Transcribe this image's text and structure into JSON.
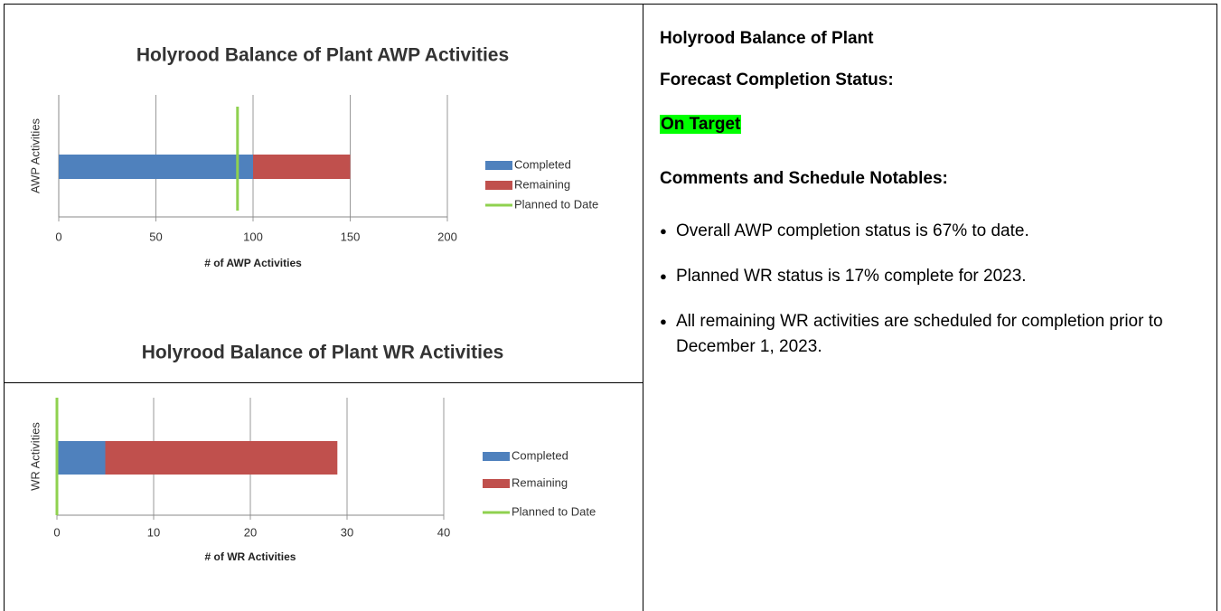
{
  "chart_data": [
    {
      "type": "stacked_hbar",
      "title": "Holyrood Balance of Plant AWP Activities",
      "ylabel": "AWP Activities",
      "xlabel": "# of AWP Activities",
      "categories": [
        null
      ],
      "series": [
        {
          "name": "Completed",
          "color": "#4f81bd",
          "values": [
            100
          ]
        },
        {
          "name": "Remaining",
          "color": "#c0504d",
          "values": [
            50
          ]
        }
      ],
      "planned": {
        "name": "Planned to Date",
        "color": "#8fd14f",
        "value": 92
      },
      "xlim": [
        0,
        200
      ],
      "xticks": [
        0,
        50,
        100,
        150,
        200
      ],
      "grid": true,
      "legend": "right"
    },
    {
      "type": "stacked_hbar",
      "title": "Holyrood Balance of Plant WR Activities",
      "ylabel": "WR Activities",
      "xlabel": "# of WR Activities",
      "categories": [
        null
      ],
      "series": [
        {
          "name": "Completed",
          "color": "#4f81bd",
          "values": [
            5
          ]
        },
        {
          "name": "Remaining",
          "color": "#c0504d",
          "values": [
            24
          ]
        }
      ],
      "planned": {
        "name": "Planned to Date",
        "color": "#8fd14f",
        "value": 0
      },
      "xlim": [
        0,
        40
      ],
      "xticks": [
        0,
        10,
        20,
        30,
        40
      ],
      "grid": true,
      "legend": "right"
    }
  ],
  "panel": {
    "title": "Holyrood Balance of Plant",
    "status_label": "Forecast Completion Status:",
    "status": "On Target",
    "comments_label": "Comments and Schedule Notables:",
    "bullets": [
      "Overall AWP completion status is 67% to date.",
      "Planned WR status is 17% complete for 2023.",
      "All remaining WR activities are scheduled for completion prior to December 1, 2023."
    ]
  }
}
